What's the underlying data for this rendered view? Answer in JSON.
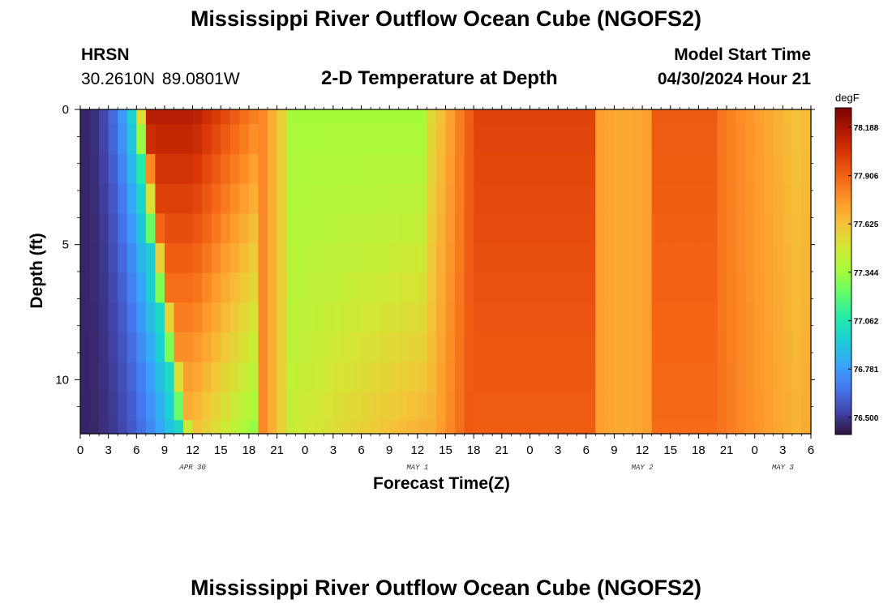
{
  "header": {
    "title": "Mississippi River Outflow Ocean Cube (NGOFS2)",
    "station_code": "HRSN",
    "station_coords": "30.2610N  89.0801W",
    "subtitle": "2-D Temperature at Depth",
    "model_start_label": "Model Start Time",
    "model_start_value": "04/30/2024 Hour 21"
  },
  "footer": {
    "title": "Mississippi River Outflow Ocean Cube (NGOFS2)"
  },
  "chart_data": {
    "type": "heatmap",
    "title": "2-D Temperature at Depth",
    "xlabel": "Forecast Time(Z)",
    "ylabel": "Depth (ft)",
    "x_unit": "hours since Apr 30 00Z",
    "xlim": [
      0,
      78
    ],
    "ylim": [
      12,
      0
    ],
    "x_ticks": [
      0,
      3,
      6,
      9,
      12,
      15,
      18,
      21,
      24,
      27,
      30,
      33,
      36,
      39,
      42,
      45,
      48,
      51,
      54,
      57,
      60,
      63,
      66,
      69,
      72,
      75,
      78
    ],
    "x_tick_labels": [
      "0",
      "3",
      "6",
      "9",
      "12",
      "15",
      "18",
      "21",
      "0",
      "3",
      "6",
      "9",
      "12",
      "15",
      "18",
      "21",
      "0",
      "3",
      "6",
      "9",
      "12",
      "15",
      "18",
      "21",
      "0",
      "3",
      "6"
    ],
    "date_labels": [
      {
        "label": "APR 30",
        "hour": 12
      },
      {
        "label": "MAY 1",
        "hour": 36
      },
      {
        "label": "MAY 2",
        "hour": 60
      },
      {
        "label": "MAY 3",
        "hour": 75
      }
    ],
    "y_ticks": [
      0,
      5,
      10
    ],
    "y_tick_labels": [
      "0",
      "5",
      "10"
    ],
    "colorbar": {
      "unit": "degF",
      "min": 76.4,
      "max": 78.3,
      "ticks": [
        78.188,
        77.906,
        77.625,
        77.344,
        77.062,
        76.781,
        76.5
      ],
      "tick_labels": [
        "78.188",
        "77.906",
        "77.625",
        "77.344",
        "77.062",
        "76.781",
        "76.500"
      ]
    },
    "depth_levels_ft": [
      0.0,
      1.1,
      2.2,
      3.3,
      4.4,
      5.5,
      6.6,
      7.7,
      8.8,
      9.9,
      11.0,
      12.0
    ],
    "colormap": [
      [
        0.0,
        "#30123b"
      ],
      [
        0.07,
        "#4145ab"
      ],
      [
        0.14,
        "#4675ed"
      ],
      [
        0.21,
        "#39a2fc"
      ],
      [
        0.29,
        "#1bcfd4"
      ],
      [
        0.36,
        "#24eca6"
      ],
      [
        0.43,
        "#61fc6c"
      ],
      [
        0.5,
        "#a4fc3b"
      ],
      [
        0.57,
        "#d1e834"
      ],
      [
        0.64,
        "#f3c63a"
      ],
      [
        0.71,
        "#fe9b2d"
      ],
      [
        0.79,
        "#f36315"
      ],
      [
        0.86,
        "#d93806"
      ],
      [
        0.93,
        "#b11901"
      ],
      [
        1.0,
        "#7a0403"
      ]
    ]
  }
}
